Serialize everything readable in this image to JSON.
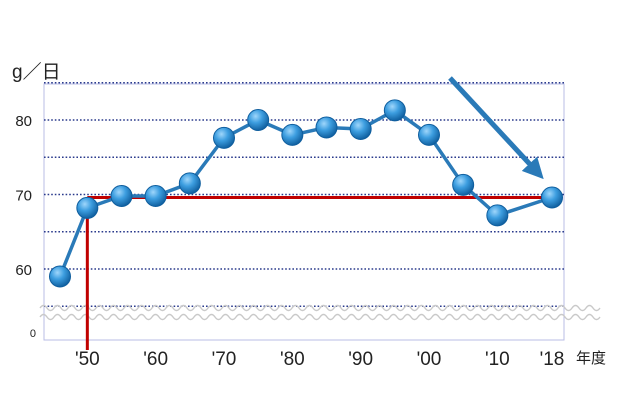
{
  "chart_data": {
    "type": "line",
    "ylabel": "g／日",
    "xlabel": "年度",
    "ylim": [
      55,
      85
    ],
    "y_break": true,
    "grid": "horizontal dotted",
    "y_ticks": [
      {
        "value": 60,
        "label": "60"
      },
      {
        "value": 70,
        "label": "70"
      },
      {
        "value": 80,
        "label": "80"
      }
    ],
    "y_origin_label": "0",
    "x_ticks": [
      {
        "value": 1950,
        "label": "'50"
      },
      {
        "value": 1960,
        "label": "'60"
      },
      {
        "value": 1970,
        "label": "'70"
      },
      {
        "value": 1980,
        "label": "'80"
      },
      {
        "value": 1990,
        "label": "'90"
      },
      {
        "value": 2000,
        "label": "'00"
      },
      {
        "value": 2010,
        "label": "'10"
      },
      {
        "value": 2018,
        "label": "'18"
      }
    ],
    "series": [
      {
        "points": [
          {
            "x": 1946,
            "y": 59.0
          },
          {
            "x": 1950,
            "y": 68.2
          },
          {
            "x": 1955,
            "y": 69.8
          },
          {
            "x": 1960,
            "y": 69.8
          },
          {
            "x": 1965,
            "y": 71.5
          },
          {
            "x": 1970,
            "y": 77.6
          },
          {
            "x": 1975,
            "y": 80.0
          },
          {
            "x": 1980,
            "y": 78.0
          },
          {
            "x": 1985,
            "y": 79.0
          },
          {
            "x": 1990,
            "y": 78.8
          },
          {
            "x": 1995,
            "y": 81.3
          },
          {
            "x": 2000,
            "y": 78.0
          },
          {
            "x": 2005,
            "y": 71.3
          },
          {
            "x": 2010,
            "y": 67.2
          },
          {
            "x": 2018,
            "y": 69.6
          }
        ]
      }
    ],
    "reference_line": {
      "y": 69.6,
      "from_x": 1950,
      "to_x": 2018
    },
    "colors": {
      "series_line": "#2a7ab8",
      "marker_light": "#5ab3ec",
      "marker_dark": "#0f5e9e",
      "reference": "#c00000",
      "grid": "#2a3a8c",
      "arrow": "#2a7ab8",
      "axis_frame": "#b9bde6",
      "break_wave": "#c9c9c9"
    },
    "trend_arrow": {
      "from_x": 1996,
      "from_y": 85,
      "to_x": 2018,
      "to_y": 71.5
    }
  }
}
